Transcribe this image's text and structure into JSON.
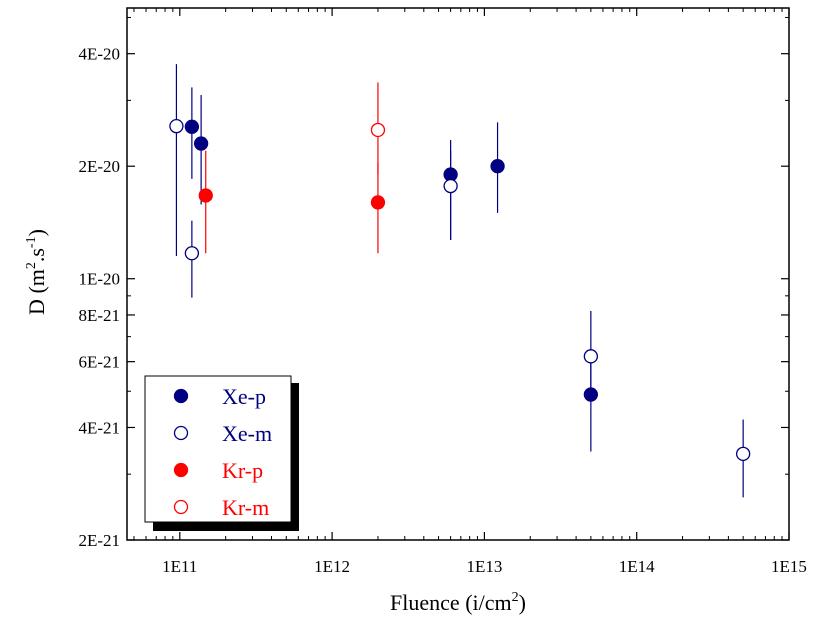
{
  "chart_data": {
    "type": "scatter",
    "x_scale": "log",
    "y_scale": "log",
    "xlim": [
      45000000000.0,
      1000000000000000.0
    ],
    "ylim": [
      2e-21,
      5.3e-20
    ],
    "xlabel": "Fluence (i/cm²)",
    "xlabel_main": "Fluence (i/cm",
    "xlabel_sup": "2",
    "xlabel_end": ")",
    "ylabel": "D (m².s⁻¹)",
    "ylabel_parts": {
      "a": "D (m",
      "sup1": "2",
      "b": ".s",
      "sup2": "-1",
      "c": ")"
    },
    "x_ticks": [
      {
        "value": 100000000000.0,
        "label": "1E11"
      },
      {
        "value": 1000000000000.0,
        "label": "1E12"
      },
      {
        "value": 10000000000000.0,
        "label": "1E13"
      },
      {
        "value": 100000000000000.0,
        "label": "1E14"
      },
      {
        "value": 1000000000000000.0,
        "label": "1E15"
      }
    ],
    "y_ticks": [
      {
        "value": 2e-21,
        "label": "2E-21"
      },
      {
        "value": 4e-21,
        "label": "4E-21"
      },
      {
        "value": 6e-21,
        "label": "6E-21"
      },
      {
        "value": 8e-21,
        "label": "8E-21"
      },
      {
        "value": 1e-20,
        "label": "1E-20"
      },
      {
        "value": 2e-20,
        "label": "2E-20"
      },
      {
        "value": 4e-20,
        "label": "4E-20"
      }
    ],
    "legend_position": "bottom-left",
    "grid": false,
    "series": [
      {
        "name": "Xe-p",
        "color": "#000080",
        "filled": true,
        "points": [
          {
            "x": 120000000000.0,
            "y": 2.55e-20,
            "y_low": 1.85e-20,
            "y_high": 3.25e-20
          },
          {
            "x": 138000000000.0,
            "y": 2.3e-20,
            "y_low": 1.58e-20,
            "y_high": 3.1e-20
          },
          {
            "x": 6000000000000.0,
            "y": 1.9e-20,
            "y_low": 1.27e-20,
            "y_high": 2.35e-20
          },
          {
            "x": 12200000000000.0,
            "y": 2e-20,
            "y_low": 1.5e-20,
            "y_high": 2.62e-20
          },
          {
            "x": 50000000000000.0,
            "y": 4.9e-21,
            "y_low": 3.45e-21,
            "y_high": 6.5e-21
          }
        ]
      },
      {
        "name": "Xe-m",
        "color": "#000080",
        "filled": false,
        "points": [
          {
            "x": 95000000000.0,
            "y": 2.56e-20,
            "y_low": 1.15e-20,
            "y_high": 3.75e-20
          },
          {
            "x": 120000000000.0,
            "y": 1.17e-20,
            "y_low": 8.9e-21,
            "y_high": 1.43e-20
          },
          {
            "x": 6000000000000.0,
            "y": 1.77e-20,
            "y_low": 1.27e-20,
            "y_high": 2.2e-20
          },
          {
            "x": 50000000000000.0,
            "y": 6.2e-21,
            "y_low": 4.9e-21,
            "y_high": 8.2e-21
          },
          {
            "x": 500000000000000.0,
            "y": 3.4e-21,
            "y_low": 2.6e-21,
            "y_high": 4.2e-21
          }
        ]
      },
      {
        "name": "Kr-p",
        "color": "#ff0000",
        "filled": true,
        "points": [
          {
            "x": 148000000000.0,
            "y": 1.67e-20,
            "y_low": 1.17e-20,
            "y_high": 2.2e-20
          },
          {
            "x": 2000000000000.0,
            "y": 1.6e-20,
            "y_low": 1.17e-20,
            "y_high": 2.05e-20
          }
        ]
      },
      {
        "name": "Kr-m",
        "color": "#ff0000",
        "filled": false,
        "points": [
          {
            "x": 2000000000000.0,
            "y": 2.5e-20,
            "y_low": 1.9e-20,
            "y_high": 3.35e-20
          }
        ]
      }
    ]
  }
}
